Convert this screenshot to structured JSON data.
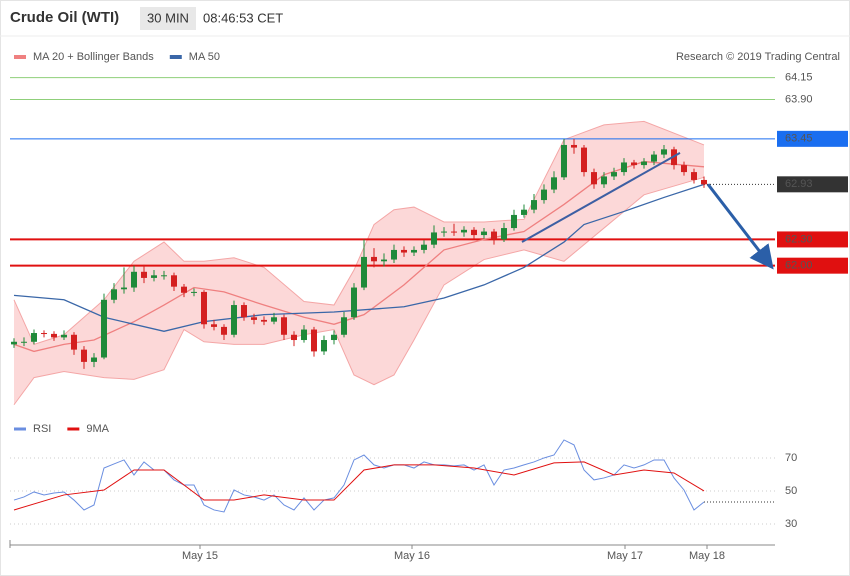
{
  "header": {
    "title": "Crude Oil (WTI)",
    "timeframe": "30 MIN",
    "time": "08:46:53 CET"
  },
  "credit": "Research © 2019 Trading Central",
  "chart_data": [
    {
      "type": "candlestick",
      "xlim": [
        -0.4,
        76.1
      ],
      "ylim": [
        60.35,
        64.58
      ],
      "up_color": "#1f8a3a",
      "down_color": "#d42020",
      "ohlc": [
        [
          61.1,
          61.17,
          61.06,
          61.13
        ],
        [
          61.13,
          61.18,
          61.08,
          61.13
        ],
        [
          61.13,
          61.27,
          61.1,
          61.23
        ],
        [
          61.23,
          61.26,
          61.18,
          61.22
        ],
        [
          61.22,
          61.25,
          61.14,
          61.18
        ],
        [
          61.18,
          61.26,
          61.15,
          61.21
        ],
        [
          61.21,
          61.24,
          60.98,
          61.04
        ],
        [
          61.04,
          61.08,
          60.82,
          60.9
        ],
        [
          60.9,
          61.0,
          60.84,
          60.95
        ],
        [
          60.95,
          61.68,
          60.93,
          61.61
        ],
        [
          61.61,
          61.8,
          61.57,
          61.73
        ],
        [
          61.73,
          61.98,
          61.68,
          61.75
        ],
        [
          61.75,
          62.0,
          61.7,
          61.93
        ],
        [
          61.93,
          62.01,
          61.8,
          61.86
        ],
        [
          61.86,
          61.95,
          61.82,
          61.89
        ],
        [
          61.89,
          61.94,
          61.84,
          61.89
        ],
        [
          61.89,
          61.92,
          61.71,
          61.76
        ],
        [
          61.76,
          61.79,
          61.64,
          61.69
        ],
        [
          61.69,
          61.74,
          61.65,
          61.7
        ],
        [
          61.7,
          61.72,
          61.28,
          61.33
        ],
        [
          61.33,
          61.38,
          61.26,
          61.3
        ],
        [
          61.3,
          61.33,
          61.15,
          61.21
        ],
        [
          61.21,
          61.6,
          61.18,
          61.55
        ],
        [
          61.55,
          61.58,
          61.37,
          61.41
        ],
        [
          61.41,
          61.45,
          61.33,
          61.38
        ],
        [
          61.38,
          61.42,
          61.32,
          61.36
        ],
        [
          61.36,
          61.46,
          61.33,
          61.41
        ],
        [
          61.41,
          61.44,
          61.15,
          61.21
        ],
        [
          61.21,
          61.25,
          61.08,
          61.15
        ],
        [
          61.15,
          61.32,
          61.12,
          61.27
        ],
        [
          61.27,
          61.3,
          60.96,
          61.02
        ],
        [
          61.02,
          61.2,
          60.98,
          61.15
        ],
        [
          61.15,
          61.26,
          61.1,
          61.21
        ],
        [
          61.21,
          61.47,
          61.18,
          61.41
        ],
        [
          61.41,
          61.8,
          61.38,
          61.75
        ],
        [
          61.75,
          62.3,
          61.72,
          62.1
        ],
        [
          62.1,
          62.2,
          61.98,
          62.05
        ],
        [
          62.05,
          62.14,
          61.99,
          62.07
        ],
        [
          62.07,
          62.24,
          62.03,
          62.18
        ],
        [
          62.18,
          62.22,
          62.1,
          62.15
        ],
        [
          62.15,
          62.22,
          62.11,
          62.18
        ],
        [
          62.18,
          62.29,
          62.14,
          62.24
        ],
        [
          62.24,
          62.46,
          62.2,
          62.38
        ],
        [
          62.38,
          62.44,
          62.33,
          62.39
        ],
        [
          62.39,
          62.48,
          62.34,
          62.38
        ],
        [
          62.38,
          62.45,
          62.33,
          62.41
        ],
        [
          62.41,
          62.44,
          62.3,
          62.35
        ],
        [
          62.35,
          62.43,
          62.31,
          62.39
        ],
        [
          62.39,
          62.42,
          62.24,
          62.3
        ],
        [
          62.3,
          62.49,
          62.27,
          62.43
        ],
        [
          62.43,
          62.64,
          62.4,
          62.58
        ],
        [
          62.58,
          62.7,
          62.55,
          62.64
        ],
        [
          62.64,
          62.82,
          62.6,
          62.75
        ],
        [
          62.75,
          62.93,
          62.71,
          62.87
        ],
        [
          62.87,
          63.08,
          62.83,
          63.01
        ],
        [
          63.01,
          63.45,
          62.98,
          63.38
        ],
        [
          63.38,
          63.45,
          63.28,
          63.35
        ],
        [
          63.35,
          63.38,
          63.02,
          63.07
        ],
        [
          63.07,
          63.11,
          62.88,
          62.93
        ],
        [
          62.93,
          63.07,
          62.89,
          63.02
        ],
        [
          63.02,
          63.12,
          62.98,
          63.07
        ],
        [
          63.07,
          63.23,
          63.03,
          63.18
        ],
        [
          63.18,
          63.21,
          63.11,
          63.15
        ],
        [
          63.15,
          63.23,
          63.11,
          63.19
        ],
        [
          63.19,
          63.31,
          63.15,
          63.27
        ],
        [
          63.27,
          63.38,
          63.23,
          63.33
        ],
        [
          63.33,
          63.36,
          63.1,
          63.15
        ],
        [
          63.15,
          63.19,
          63.03,
          63.07
        ],
        [
          63.07,
          63.11,
          62.94,
          62.98
        ],
        [
          62.98,
          63.02,
          62.89,
          62.93
        ]
      ],
      "bands": {
        "fill": "#fcd8d8",
        "color": "#f4a6a6",
        "x": [
          0,
          2,
          5,
          9,
          12,
          15,
          17,
          19,
          22,
          25,
          29,
          32,
          34,
          36,
          38,
          40,
          43,
          47,
          51,
          55,
          59,
          63,
          69
        ],
        "upper": [
          61.61,
          61.1,
          61.21,
          61.61,
          62.05,
          62.27,
          62.05,
          62.05,
          62.09,
          61.98,
          61.59,
          61.55,
          61.95,
          62.47,
          62.64,
          62.67,
          62.5,
          62.5,
          62.53,
          63.44,
          63.61,
          63.65,
          63.38
        ],
        "lower": [
          60.41,
          60.72,
          60.79,
          60.72,
          60.7,
          60.81,
          61.27,
          61.13,
          61.1,
          61.1,
          61.21,
          61.27,
          60.75,
          60.64,
          60.75,
          61.15,
          61.78,
          62.07,
          62.18,
          62.05,
          62.43,
          62.81,
          63.01
        ]
      },
      "series": [
        {
          "name": "MA 20 + Bollinger Bands",
          "color": "#ef8080",
          "x": [
            0,
            2,
            5,
            8,
            12,
            15,
            18,
            21,
            25,
            29,
            32,
            35,
            39,
            43,
            47,
            51,
            55,
            59,
            63,
            69
          ],
          "values": [
            61.1,
            61.02,
            61.1,
            61.15,
            61.36,
            61.55,
            61.75,
            61.7,
            61.55,
            61.41,
            61.33,
            61.44,
            61.78,
            62.18,
            62.3,
            62.39,
            62.7,
            63.04,
            63.19,
            63.13
          ]
        },
        {
          "name": "MA 50",
          "color": "#3a67a8",
          "x": [
            0,
            5,
            9,
            15,
            19,
            25,
            32,
            39,
            43,
            47,
            51,
            55,
            57,
            61,
            65,
            69
          ],
          "values": [
            61.66,
            61.61,
            61.41,
            61.25,
            61.36,
            61.44,
            61.47,
            61.53,
            61.63,
            61.78,
            61.98,
            62.27,
            62.47,
            62.62,
            62.78,
            62.93
          ]
        }
      ],
      "levels": [
        {
          "value": 64.15,
          "label": "64.15",
          "color": "#8fcf7a",
          "boxed": false,
          "line_style": "solid",
          "line_width": 1
        },
        {
          "value": 63.9,
          "label": "63.90",
          "color": "#8fcf7a",
          "boxed": false,
          "line_style": "solid",
          "line_width": 1
        },
        {
          "value": 63.45,
          "label": "63.45",
          "color": "#1a6ef0",
          "boxed": true,
          "line_style": "solid",
          "line_width": 1
        },
        {
          "value": 62.93,
          "label": "62.93",
          "color": "#333333",
          "boxed": true,
          "line_style": "dotted",
          "line_width": 1
        },
        {
          "value": 62.3,
          "label": "62.30",
          "color": "#e01010",
          "boxed": true,
          "line_style": "solid",
          "line_width": 2
        },
        {
          "value": 62,
          "label": "62.00",
          "color": "#e01010",
          "boxed": true,
          "line_style": "solid",
          "line_width": 2
        }
      ],
      "trendline": {
        "color": "#3d5fa3",
        "x": [
          50.8,
          66.6
        ],
        "y": [
          62.27,
          63.29
        ]
      },
      "arrow": {
        "color": "#2b5fa8",
        "x": [
          69.4,
          75.6
        ],
        "y": [
          62.93,
          62.01
        ]
      }
    },
    {
      "type": "line",
      "xlim": [
        -0.4,
        76.1
      ],
      "ylim": [
        20.3,
        93
      ],
      "yticks": [
        30,
        50,
        70
      ],
      "xticks": [
        {
          "value": 18.6,
          "label": "May 15"
        },
        {
          "value": 39.8,
          "label": "May 16"
        },
        {
          "value": 61.1,
          "label": "May 17"
        },
        {
          "value": 69.3,
          "label": "May 18"
        }
      ],
      "series": [
        {
          "name": "RSI",
          "color": "#6a8ee0",
          "x": [
            0,
            1,
            2,
            3,
            4,
            5,
            6,
            7,
            8,
            9,
            10,
            11,
            12,
            13,
            14,
            15,
            16,
            17,
            18,
            19,
            20,
            21,
            22,
            23,
            24,
            25,
            26,
            27,
            28,
            29,
            30,
            31,
            32,
            33,
            34,
            35,
            36,
            37,
            38,
            39,
            40,
            41,
            42,
            43,
            44,
            45,
            46,
            47,
            48,
            49,
            50,
            51,
            52,
            53,
            54,
            55,
            56,
            57,
            58,
            59,
            60,
            61,
            62,
            63,
            64,
            65,
            66,
            67,
            68,
            69
          ],
          "values": [
            44.5,
            46.4,
            49.4,
            47.6,
            48.8,
            49.4,
            44.5,
            38.5,
            41.5,
            63.9,
            66.4,
            68.8,
            59.7,
            67.6,
            62.7,
            62.7,
            56.7,
            53.6,
            53.6,
            41.5,
            38.5,
            37.3,
            50.6,
            47.6,
            46.4,
            44.5,
            47.6,
            41.5,
            38.5,
            45.8,
            38.5,
            44.5,
            45.8,
            53.6,
            68.8,
            71.8,
            65.8,
            63.9,
            65.8,
            65.8,
            63.9,
            67.6,
            65.8,
            65.8,
            65.2,
            65.8,
            62.7,
            65.8,
            53.6,
            62.7,
            63.9,
            65.8,
            67.6,
            70,
            71.8,
            80.9,
            77.9,
            62.7,
            56.7,
            57.9,
            59.7,
            65.8,
            63.9,
            65.8,
            68.8,
            68.8,
            57.9,
            50.6,
            38.5,
            43.3
          ]
        },
        {
          "name": "9MA",
          "color": "#e01010",
          "x": [
            0,
            5,
            9,
            12,
            15,
            19,
            22,
            25,
            29,
            32,
            35,
            38,
            42,
            46,
            50,
            54,
            57,
            60,
            63,
            66,
            69
          ],
          "values": [
            38.5,
            47.6,
            50.6,
            62.7,
            62.7,
            44.5,
            44.5,
            47.6,
            44.5,
            44.5,
            62.7,
            65.8,
            65.8,
            63.9,
            59.7,
            67.0,
            67.6,
            59.7,
            62.7,
            60.9,
            50.0
          ]
        }
      ]
    }
  ]
}
